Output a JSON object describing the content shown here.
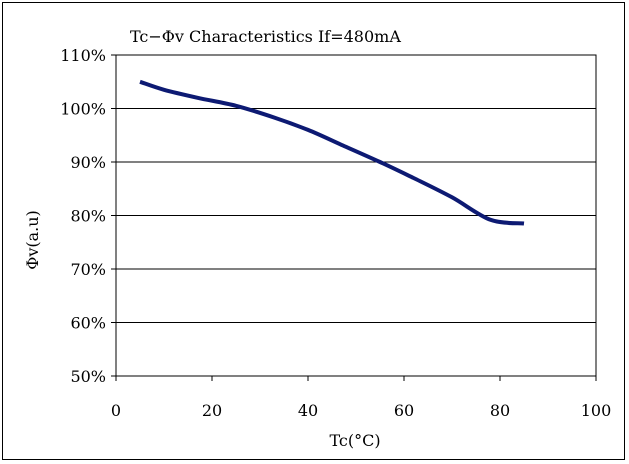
{
  "chart_data": {
    "type": "line",
    "title": "Tc−Φv  Characteristics    If=480mA",
    "xlabel": "Tc(°C)",
    "ylabel": "Φv(a.u)",
    "xlim": [
      0,
      100
    ],
    "ylim": [
      50,
      110
    ],
    "xticks": [
      0,
      20,
      40,
      60,
      80,
      100
    ],
    "yticks": [
      50,
      60,
      70,
      80,
      90,
      100,
      110
    ],
    "ytick_labels": [
      "50%",
      "60%",
      "70%",
      "80%",
      "90%",
      "100%",
      "110%"
    ],
    "xtick_labels": [
      "0",
      "20",
      "40",
      "60",
      "80",
      "100"
    ],
    "grid": "horizontal",
    "series": [
      {
        "color": "#0d1a73",
        "x": [
          5,
          10,
          17,
          25,
          33,
          40,
          47,
          55,
          62,
          70,
          78,
          85
        ],
        "y": [
          105.0,
          103.5,
          102.0,
          100.5,
          98.3,
          96.0,
          93.2,
          90.0,
          87.0,
          83.4,
          79.2,
          78.5
        ]
      }
    ]
  }
}
